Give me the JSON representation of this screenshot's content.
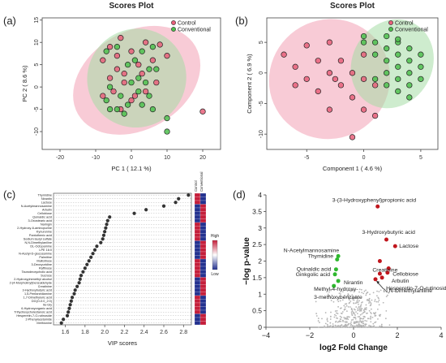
{
  "panels": {
    "a": "(a)",
    "b": "(b)",
    "c": "(c)",
    "d": "(d)"
  },
  "colors": {
    "control": "#e8607a",
    "conventional": "#4dbf4d",
    "control_ellipse": "#f2a0b4",
    "conventional_ellipse": "#a6dca6",
    "upregulated": "#c0161d",
    "downregulated": "#2eb82e",
    "nonsignificant": "#b5b5b5",
    "vip_point": "#333333",
    "heat_high": "#c41e3a",
    "heat_low": "#23318f"
  },
  "chart_data": [
    {
      "id": "a",
      "type": "scatter",
      "title": "Scores Plot",
      "xlabel": "PC 1 ( 12.1 %)",
      "ylabel": "PC 2 ( 8.6 %)",
      "xlim": [
        -25,
        25
      ],
      "ylim": [
        -14,
        15.5
      ],
      "xticks": [
        -20,
        -10,
        0,
        10,
        20
      ],
      "yticks": [
        -10,
        -5,
        0,
        5,
        10,
        15
      ],
      "legend": [
        "Control",
        "Conventional"
      ],
      "legend_position": "top-right",
      "ellipses": [
        {
          "name": "Control",
          "cx": 1.5,
          "cy": 1.5,
          "rx": 19,
          "ry": 11,
          "rot": -30
        },
        {
          "name": "Conventional",
          "cx": 1.5,
          "cy": 2.0,
          "rx": 14,
          "ry": 11,
          "rot": -40
        }
      ],
      "series": [
        {
          "name": "Control",
          "points": [
            [
              -6,
              9
            ],
            [
              -3,
              11
            ],
            [
              0,
              8
            ],
            [
              4,
              10
            ],
            [
              8,
              9.5
            ],
            [
              10,
              7
            ],
            [
              -8,
              6
            ],
            [
              -4,
              4
            ],
            [
              2,
              5
            ],
            [
              6,
              6
            ],
            [
              -6,
              2
            ],
            [
              -2,
              1
            ],
            [
              -5,
              -1
            ],
            [
              -8,
              -2
            ],
            [
              1,
              -2
            ],
            [
              4,
              -1
            ],
            [
              7,
              1
            ],
            [
              -3,
              -5
            ],
            [
              0,
              -3
            ],
            [
              20,
              -5.5
            ],
            [
              -4,
              7
            ],
            [
              -2,
              3
            ],
            [
              3,
              3
            ]
          ]
        },
        {
          "name": "Conventional",
          "points": [
            [
              -7,
              8
            ],
            [
              -4,
              9
            ],
            [
              3,
              8
            ],
            [
              6,
              9
            ],
            [
              -1,
              5
            ],
            [
              1,
              6
            ],
            [
              5,
              4
            ],
            [
              7,
              4
            ],
            [
              -6,
              0
            ],
            [
              -3,
              -2
            ],
            [
              0,
              1
            ],
            [
              2,
              -1
            ],
            [
              5,
              -2
            ],
            [
              -7,
              -3
            ],
            [
              -4,
              -5
            ],
            [
              -1,
              -4
            ],
            [
              3,
              -4
            ],
            [
              6,
              -5
            ],
            [
              10,
              -7
            ],
            [
              10,
              -10
            ],
            [
              -6,
              -5
            ],
            [
              2,
              2
            ],
            [
              -2,
              -6
            ],
            [
              4,
              1
            ]
          ]
        }
      ]
    },
    {
      "id": "b",
      "type": "scatter",
      "title": "Scores Plot",
      "xlabel": "Component 1 ( 4.6 %)",
      "ylabel": "Component 2 ( 6.9 %)",
      "xlim": [
        -8.5,
        6.5
      ],
      "ylim": [
        -12.5,
        9
      ],
      "xticks": [
        -5,
        0,
        5
      ],
      "yticks": [
        -10,
        -5,
        0,
        5
      ],
      "legend": [
        "Control",
        "Conventional"
      ],
      "legend_position": "top-right",
      "ellipses": [
        {
          "name": "Control",
          "cx": -3.0,
          "cy": -1.0,
          "rx": 5.2,
          "ry": 10,
          "rot": 55
        },
        {
          "name": "Conventional",
          "cx": 2.5,
          "cy": 1.5,
          "rx": 3.5,
          "ry": 7.5,
          "rot": 30
        }
      ],
      "series": [
        {
          "name": "Control",
          "points": [
            [
              -7,
              3
            ],
            [
              -5,
              4.5
            ],
            [
              -3,
              5
            ],
            [
              -6,
              1
            ],
            [
              -4,
              2
            ],
            [
              -2,
              2
            ],
            [
              0,
              3
            ],
            [
              -5,
              -1
            ],
            [
              -3,
              0
            ],
            [
              -1,
              0
            ],
            [
              -4,
              -3
            ],
            [
              -2,
              -2
            ],
            [
              0,
              -1
            ],
            [
              -1,
              -4
            ],
            [
              1,
              -2
            ],
            [
              -3,
              -6
            ],
            [
              0,
              -6
            ],
            [
              1,
              -7
            ],
            [
              -6,
              -2
            ],
            [
              -1,
              -10.5
            ],
            [
              -2.5,
              -1
            ]
          ]
        },
        {
          "name": "Conventional",
          "points": [
            [
              0,
              6
            ],
            [
              1,
              5
            ],
            [
              2,
              6
            ],
            [
              3,
              5
            ],
            [
              2,
              4
            ],
            [
              3,
              3
            ],
            [
              4,
              4
            ],
            [
              5,
              3
            ],
            [
              1,
              3
            ],
            [
              2,
              2
            ],
            [
              3,
              1
            ],
            [
              4,
              2
            ],
            [
              5,
              1
            ],
            [
              2,
              0
            ],
            [
              3,
              -1
            ],
            [
              4,
              0
            ],
            [
              1,
              -1
            ],
            [
              3,
              -3
            ],
            [
              4,
              -2
            ],
            [
              2,
              -2
            ],
            [
              5,
              -1
            ],
            [
              4,
              -4
            ],
            [
              0,
              5
            ],
            [
              3,
              5.5
            ]
          ]
        }
      ]
    },
    {
      "id": "c",
      "type": "scatter",
      "xlabel": "VIP scores",
      "xlim": [
        1.48,
        2.88
      ],
      "xticks": [
        1.6,
        1.8,
        2.0,
        2.2,
        2.4,
        2.6,
        2.8
      ],
      "heatmap_columns": [
        "Control",
        "Conventional"
      ],
      "heatmap_scale": [
        "High",
        "Low"
      ],
      "features": [
        "Thymidine",
        "Nirantin",
        "Lactose",
        "N-Acetylmannosamine",
        "Arbutin",
        "Cellobiose",
        "Quinaldic acid",
        "3-Oxostearic acid",
        "Naringin",
        "2-Hydroxy-6-aminopurine",
        "Kynurenine",
        "Pantothenic acid",
        "Sodium lauryl sulfate",
        "N,N-Dimethylaniline",
        "DL-Octopamine",
        "LPE 16:0",
        "N-Acetyl-D-glucosamine",
        "Palmitine",
        "Maltotriose",
        "3-Deoxyuridine",
        "Raffinose",
        "Taurodeoxycholic acid",
        "Sucrose",
        "2-Hydroxyphenethyl alcohol",
        "2-(4-Morpholinyl)benzaldehyde",
        "Creatinine",
        "3-Hydroxybutyric acid",
        "1,5-Pentanediamine",
        "1,7-Dimethyluric acid",
        "DG(O-0:0_2:0)",
        "Ile-Gly",
        "6-Hydroxyorganic acid",
        "Trihydroxycholestanoic acid",
        "Hesperetin-7-O-rutinoside",
        "2-Phenylacetamide",
        "Methionine"
      ],
      "values": [
        2.85,
        2.75,
        2.72,
        2.6,
        2.42,
        2.3,
        2.05,
        2.03,
        2.02,
        2.01,
        2.0,
        1.99,
        1.98,
        1.96,
        1.92,
        1.9,
        1.88,
        1.86,
        1.84,
        1.82,
        1.8,
        1.78,
        1.76,
        1.75,
        1.74,
        1.72,
        1.7,
        1.69,
        1.67,
        1.66,
        1.65,
        1.64,
        1.63,
        1.62,
        1.58,
        1.56
      ]
    },
    {
      "id": "d",
      "type": "scatter",
      "xlabel": "log2 Fold Change",
      "ylabel": "−log p-value",
      "xlim": [
        -4,
        4
      ],
      "ylim": [
        0,
        4
      ],
      "xticks": [
        -4,
        -2,
        0,
        2,
        4
      ],
      "yticks": [
        0,
        0.5,
        1,
        1.5,
        2,
        2.5,
        3,
        3.5,
        4
      ],
      "series": [
        {
          "name": "up",
          "points": [
            [
              1.1,
              3.65
            ],
            [
              1.5,
              2.65
            ],
            [
              1.9,
              2.45
            ],
            [
              1.2,
              2.0
            ],
            [
              1.6,
              1.78
            ],
            [
              1.55,
              1.65
            ],
            [
              1.3,
              1.5
            ],
            [
              1.0,
              1.45
            ],
            [
              1.2,
              1.62
            ]
          ]
        },
        {
          "name": "down",
          "points": [
            [
              -0.7,
              2.15
            ],
            [
              -0.75,
              2.05
            ],
            [
              -0.8,
              1.75
            ],
            [
              -0.85,
              1.6
            ],
            [
              -0.7,
              1.4
            ],
            [
              -0.9,
              1.25
            ]
          ]
        }
      ],
      "labels": [
        {
          "text": "3-(3-Hydroxyphenyl)propionic acid",
          "x": 1.1,
          "y": 3.65
        },
        {
          "text": "3-Hydroxybutyric acid",
          "x": 1.5,
          "y": 2.65
        },
        {
          "text": "Lactose",
          "x": 1.9,
          "y": 2.45
        },
        {
          "text": "Thymidine",
          "x": -0.7,
          "y": 2.15
        },
        {
          "text": "N-Acetylmannosamine",
          "x": -0.75,
          "y": 2.05
        },
        {
          "text": "Creatinine",
          "x": 1.2,
          "y": 2.0
        },
        {
          "text": "Quinaldic acid",
          "x": -0.8,
          "y": 1.75
        },
        {
          "text": "Nirantin",
          "x": 1.2,
          "y": 1.62
        },
        {
          "text": "Cellobiose",
          "x": 1.6,
          "y": 1.78
        },
        {
          "text": "Ginkgolic acid",
          "x": -0.85,
          "y": 1.6
        },
        {
          "text": "Arbutin",
          "x": 1.55,
          "y": 1.65
        },
        {
          "text": "Hesperetin-7-O-rutinoside",
          "x": 1.3,
          "y": 1.5
        },
        {
          "text": "Methyl-4-hydroxy-",
          "x": -0.7,
          "y": 1.4
        },
        {
          "text": "3-methoxybenzoate",
          "x": -0.7,
          "y": 1.4
        },
        {
          "text": "N,N-Dimethylaniline",
          "x": 1.0,
          "y": 1.45
        }
      ]
    }
  ]
}
